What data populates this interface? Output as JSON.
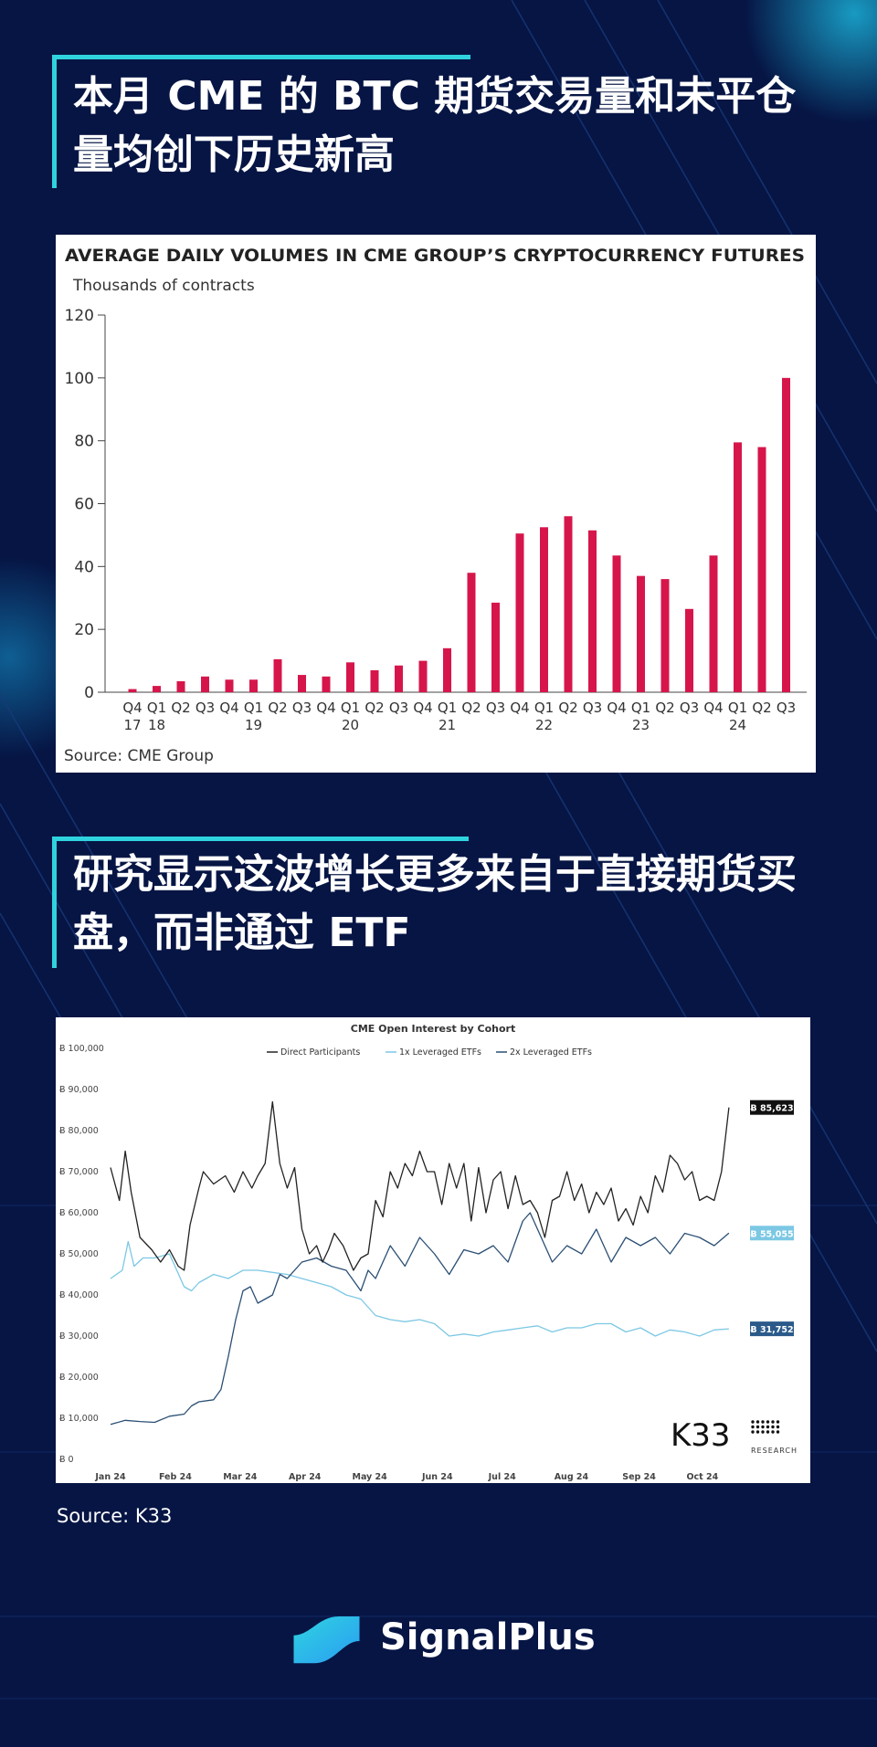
{
  "heading1": "本月 CME 的 BTC 期货交易量和未平仓量均创下历史新高",
  "heading2": "研究显示这波增长更多来自于直接期货买盘，而非通过 ETF",
  "colors": {
    "accent": "#2fd3df",
    "background": "#061544",
    "bar": "#d6164b"
  },
  "chart_data": [
    {
      "type": "bar",
      "title": "AVERAGE DAILY VOLUMES IN CME GROUP’S CRYPTOCURRENCY FUTURES",
      "ylabel": "Thousands of contracts",
      "source": "Source: CME Group",
      "ylim": [
        0,
        120
      ],
      "yticks": [
        0,
        20,
        40,
        60,
        80,
        100,
        120
      ],
      "quarter_labels": [
        "Q4",
        "Q1",
        "Q2",
        "Q3",
        "Q4",
        "Q1",
        "Q2",
        "Q3",
        "Q4",
        "Q1",
        "Q2",
        "Q3",
        "Q4",
        "Q1",
        "Q2",
        "Q3",
        "Q4",
        "Q1",
        "Q2",
        "Q3",
        "Q4",
        "Q1",
        "Q2",
        "Q3",
        "Q4",
        "Q1",
        "Q2",
        "Q3"
      ],
      "year_labels": [
        {
          "index": 0,
          "label": "17"
        },
        {
          "index": 1,
          "label": "18"
        },
        {
          "index": 5,
          "label": "19"
        },
        {
          "index": 9,
          "label": "20"
        },
        {
          "index": 13,
          "label": "21"
        },
        {
          "index": 17,
          "label": "22"
        },
        {
          "index": 21,
          "label": "23"
        },
        {
          "index": 25,
          "label": "24"
        }
      ],
      "values": [
        1,
        2,
        3.5,
        5,
        4,
        4,
        10.5,
        5.5,
        5,
        9.5,
        7,
        8.5,
        10,
        14,
        38,
        28.5,
        50.5,
        52.5,
        56,
        51.5,
        43.5,
        37,
        36,
        26.5,
        43.5,
        79.5,
        78,
        100
      ],
      "grid": false
    },
    {
      "type": "line",
      "title": "CME Open Interest by Cohort",
      "source": "Source: K33",
      "brand": "K33",
      "brand_sub": "RESEARCH",
      "ylim": [
        0,
        100000
      ],
      "yticks": [
        "Ƀ 0",
        "Ƀ 10,000",
        "Ƀ 20,000",
        "Ƀ 30,000",
        "Ƀ 40,000",
        "Ƀ 50,000",
        "Ƀ 60,000",
        "Ƀ 70,000",
        "Ƀ 80,000",
        "Ƀ 90,000",
        "Ƀ 100,000"
      ],
      "xticks": [
        "Jan 24",
        "Feb 24",
        "Mar 24",
        "Apr 24",
        "May 24",
        "Jun 24",
        "Jul 24",
        "Aug 24",
        "Sep 24",
        "Oct 24"
      ],
      "x_range": [
        0,
        43
      ],
      "legend_position": "top",
      "series": [
        {
          "name": "Direct Participants",
          "color": "#222222",
          "end_label": "Ƀ 85,623",
          "x": [
            0,
            0.6,
            1,
            1.4,
            2,
            2.8,
            3.4,
            4,
            4.6,
            5,
            5.4,
            6,
            6.3,
            7,
            7.8,
            8.4,
            9,
            9.6,
            10,
            10.5,
            11,
            11.5,
            12,
            12.5,
            13,
            13.5,
            14,
            14.4,
            14.8,
            15.2,
            15.8,
            16.5,
            17,
            17.5,
            18,
            18.5,
            19,
            19.5,
            20,
            20.5,
            21,
            21.5,
            22,
            22.5,
            23,
            23.5,
            24,
            24.5,
            25,
            25.5,
            26,
            26.5,
            27,
            27.5,
            28,
            28.5,
            29,
            29.5,
            30,
            30.5,
            31,
            31.5,
            32,
            32.5,
            33,
            33.5,
            34,
            34.5,
            35,
            35.5,
            36,
            36.5,
            37,
            37.5,
            38,
            38.5,
            39,
            39.5,
            40,
            40.5,
            41,
            41.5,
            42
          ],
          "y": [
            71000,
            63000,
            75000,
            65000,
            54000,
            51000,
            48000,
            51000,
            47000,
            46000,
            57000,
            66000,
            70000,
            67000,
            69000,
            65000,
            70000,
            66000,
            69000,
            72000,
            87000,
            72000,
            66000,
            71000,
            56000,
            50000,
            52000,
            48000,
            51000,
            55000,
            52000,
            46000,
            49000,
            50000,
            63000,
            59000,
            70000,
            66000,
            72000,
            69000,
            75000,
            70000,
            70000,
            62000,
            72000,
            66000,
            72000,
            58000,
            71000,
            60000,
            68000,
            70000,
            61000,
            69000,
            62000,
            63000,
            60000,
            54000,
            63000,
            64000,
            70000,
            63000,
            67000,
            60000,
            65000,
            62000,
            66000,
            58000,
            61000,
            57000,
            64000,
            60000,
            69000,
            65000,
            74000,
            72000,
            68000,
            70000,
            63000,
            64000,
            63000,
            70000,
            85623
          ]
        },
        {
          "name": "1x Leveraged ETFs",
          "color": "#7cc8e4",
          "end_label": "Ƀ 31,752",
          "x": [
            0,
            0.8,
            1.2,
            1.6,
            2.2,
            3,
            4,
            4.5,
            5,
            5.5,
            6,
            6.5,
            7,
            8,
            9,
            10,
            11,
            12,
            13,
            14,
            15,
            16,
            17,
            18,
            19,
            20,
            21,
            22,
            23,
            24,
            25,
            26,
            27,
            28,
            29,
            30,
            31,
            32,
            33,
            34,
            35,
            36,
            37,
            38,
            39,
            40,
            41,
            42
          ],
          "y": [
            44000,
            46000,
            53000,
            47000,
            49000,
            49000,
            50000,
            46000,
            42000,
            41000,
            43000,
            44000,
            45000,
            44000,
            46000,
            46000,
            45500,
            45000,
            44000,
            43000,
            42000,
            40000,
            39000,
            35000,
            34000,
            33500,
            34000,
            33000,
            30000,
            30500,
            30000,
            31000,
            31500,
            32000,
            32500,
            31000,
            32000,
            32000,
            33000,
            33000,
            31000,
            32000,
            30000,
            31500,
            31000,
            30000,
            31500,
            31752
          ]
        },
        {
          "name": "2x Leveraged ETFs",
          "color": "#2b4f74",
          "end_label": "Ƀ 55,055",
          "x": [
            0,
            1,
            2,
            3,
            4,
            5,
            5.5,
            6,
            7,
            7.5,
            8,
            8.5,
            9,
            9.5,
            10,
            10.5,
            11,
            11.5,
            12,
            13,
            14,
            15,
            16,
            17,
            17.5,
            18,
            19,
            20,
            21,
            22,
            23,
            24,
            25,
            26,
            27,
            28,
            28.5,
            29,
            30,
            31,
            32,
            33,
            34,
            35,
            36,
            37,
            38,
            39,
            40,
            41,
            42
          ],
          "y": [
            8500,
            9500,
            9200,
            9000,
            10500,
            11000,
            13000,
            14000,
            14500,
            17000,
            25000,
            34000,
            41000,
            42000,
            38000,
            39000,
            40000,
            45000,
            44000,
            48000,
            49000,
            47000,
            46000,
            41000,
            46000,
            44000,
            52000,
            47000,
            54000,
            50000,
            45000,
            51000,
            50000,
            52000,
            48000,
            58000,
            60000,
            56000,
            48000,
            52000,
            50000,
            56000,
            48000,
            54000,
            52000,
            54000,
            50000,
            55000,
            54000,
            52000,
            55055
          ]
        }
      ]
    }
  ],
  "footer": {
    "source": "Source: K33",
    "brand": "SignalPlus"
  }
}
